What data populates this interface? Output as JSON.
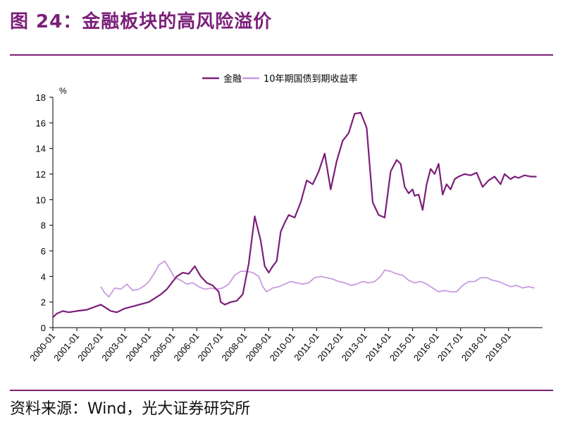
{
  "header": {
    "title": "图 24：金融板块的高风险溢价"
  },
  "footer": {
    "source": "资料来源：Wind，光大证券研究所"
  },
  "colors": {
    "accent": "#7b1f7a",
    "series_finance": "#7b1f7a",
    "series_bond": "#c79be0"
  },
  "chart_data": {
    "type": "line",
    "y_unit": "%",
    "ylim": [
      0,
      18
    ],
    "yticks": [
      0,
      2,
      4,
      6,
      8,
      10,
      12,
      14,
      16,
      18
    ],
    "xlim": [
      "2000-01",
      "2020-06"
    ],
    "xticks": [
      "2000-01",
      "2001-01",
      "2002-01",
      "2003-01",
      "2004-01",
      "2005-01",
      "2006-01",
      "2007-01",
      "2008-01",
      "2009-01",
      "2010-01",
      "2011-01",
      "2012-01",
      "2013-01",
      "2014-01",
      "2015-01",
      "2016-01",
      "2017-01",
      "2018-01",
      "2019-01"
    ],
    "grid": false,
    "legend": "top-center",
    "series": [
      {
        "name": "金融",
        "color": "#7b1f7a",
        "x": [
          "2000-01",
          "2000-03",
          "2000-06",
          "2000-09",
          "2001-01",
          "2001-06",
          "2002-01",
          "2002-03",
          "2002-06",
          "2002-09",
          "2003-01",
          "2003-06",
          "2004-01",
          "2004-04",
          "2004-07",
          "2004-10",
          "2005-01",
          "2005-03",
          "2005-06",
          "2005-09",
          "2005-12",
          "2006-03",
          "2006-06",
          "2006-09",
          "2006-12",
          "2007-01",
          "2007-03",
          "2007-06",
          "2007-09",
          "2007-12",
          "2008-03",
          "2008-06",
          "2008-09",
          "2008-11",
          "2009-01",
          "2009-03",
          "2009-05",
          "2009-07",
          "2009-09",
          "2009-11",
          "2010-02",
          "2010-05",
          "2010-08",
          "2010-11",
          "2011-02",
          "2011-05",
          "2011-08",
          "2011-11",
          "2012-02",
          "2012-05",
          "2012-08",
          "2012-11",
          "2013-02",
          "2013-05",
          "2013-08",
          "2013-11",
          "2014-02",
          "2014-05",
          "2014-07",
          "2014-09",
          "2014-11",
          "2015-01",
          "2015-02",
          "2015-04",
          "2015-06",
          "2015-08",
          "2015-10",
          "2015-12",
          "2016-02",
          "2016-04",
          "2016-06",
          "2016-08",
          "2016-10",
          "2016-12",
          "2017-03",
          "2017-06",
          "2017-09",
          "2017-12",
          "2018-03",
          "2018-06",
          "2018-09",
          "2018-11",
          "2019-02",
          "2019-04",
          "2019-06",
          "2019-09",
          "2019-12",
          "2020-03"
        ],
        "values": [
          0.8,
          1.1,
          1.3,
          1.2,
          1.3,
          1.4,
          1.8,
          1.6,
          1.3,
          1.2,
          1.5,
          1.7,
          2.0,
          2.3,
          2.6,
          3.0,
          3.6,
          4.0,
          4.3,
          4.2,
          4.8,
          4.0,
          3.5,
          3.3,
          2.8,
          2.0,
          1.8,
          2.0,
          2.1,
          2.6,
          5.0,
          8.7,
          6.8,
          4.8,
          4.3,
          4.8,
          5.2,
          7.5,
          8.2,
          8.8,
          8.6,
          9.8,
          11.5,
          11.2,
          12.2,
          13.6,
          10.8,
          13.0,
          14.6,
          15.2,
          16.7,
          16.8,
          15.6,
          9.8,
          8.8,
          8.6,
          12.2,
          13.1,
          12.8,
          11.0,
          10.5,
          10.8,
          10.3,
          10.4,
          9.2,
          11.2,
          12.4,
          12.0,
          12.8,
          10.4,
          11.2,
          10.8,
          11.6,
          11.8,
          12.0,
          11.9,
          12.1,
          11.0,
          11.5,
          11.8,
          11.2,
          12.0,
          11.6,
          11.8,
          11.7,
          11.9,
          11.8,
          11.8
        ]
      },
      {
        "name": "10年期国债到期收益率",
        "color": "#c79be0",
        "x": [
          "2002-01",
          "2002-03",
          "2002-05",
          "2002-08",
          "2002-11",
          "2003-02",
          "2003-05",
          "2003-08",
          "2003-11",
          "2004-01",
          "2004-04",
          "2004-06",
          "2004-09",
          "2004-11",
          "2005-02",
          "2005-05",
          "2005-08",
          "2005-11",
          "2006-02",
          "2006-05",
          "2006-08",
          "2006-11",
          "2007-02",
          "2007-05",
          "2007-08",
          "2007-11",
          "2008-02",
          "2008-05",
          "2008-08",
          "2008-10",
          "2008-12",
          "2009-03",
          "2009-06",
          "2009-09",
          "2009-12",
          "2010-03",
          "2010-06",
          "2010-09",
          "2010-12",
          "2011-03",
          "2011-06",
          "2011-09",
          "2011-12",
          "2012-03",
          "2012-06",
          "2012-09",
          "2012-12",
          "2013-03",
          "2013-06",
          "2013-09",
          "2013-11",
          "2014-02",
          "2014-05",
          "2014-08",
          "2014-11",
          "2015-02",
          "2015-05",
          "2015-08",
          "2015-11",
          "2016-02",
          "2016-05",
          "2016-08",
          "2016-11",
          "2017-02",
          "2017-05",
          "2017-08",
          "2017-11",
          "2018-02",
          "2018-05",
          "2018-08",
          "2018-11",
          "2019-02",
          "2019-05",
          "2019-08",
          "2019-11",
          "2020-02"
        ],
        "values": [
          3.2,
          2.7,
          2.4,
          3.1,
          3.0,
          3.4,
          2.9,
          3.0,
          3.3,
          3.6,
          4.3,
          4.9,
          5.2,
          4.7,
          3.9,
          3.7,
          3.4,
          3.5,
          3.2,
          3.0,
          3.1,
          3.0,
          3.1,
          3.4,
          4.1,
          4.4,
          4.4,
          4.3,
          4.0,
          3.2,
          2.8,
          3.1,
          3.2,
          3.4,
          3.6,
          3.5,
          3.4,
          3.5,
          3.9,
          4.0,
          3.9,
          3.8,
          3.6,
          3.5,
          3.3,
          3.4,
          3.6,
          3.5,
          3.6,
          4.0,
          4.5,
          4.4,
          4.2,
          4.1,
          3.7,
          3.5,
          3.6,
          3.4,
          3.1,
          2.8,
          2.9,
          2.8,
          2.8,
          3.3,
          3.6,
          3.6,
          3.9,
          3.9,
          3.7,
          3.6,
          3.4,
          3.2,
          3.3,
          3.1,
          3.2,
          3.1
        ]
      }
    ]
  }
}
